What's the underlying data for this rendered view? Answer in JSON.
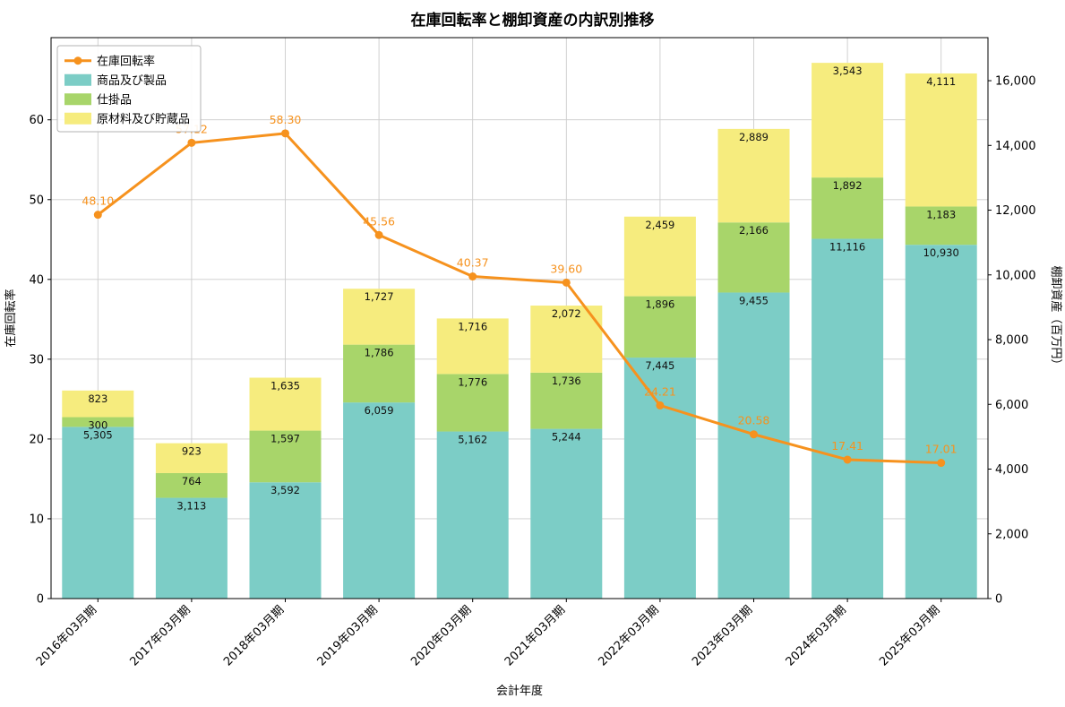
{
  "chart_data": {
    "type": "combo-stacked-bar-line",
    "title": "在庫回転率と棚卸資産の内訳別推移",
    "xlabel": "会計年度",
    "ylabel_left": "在庫回転率",
    "ylabel_right": "棚卸資産（百万円）",
    "categories": [
      "2016年03月期",
      "2017年03月期",
      "2018年03月期",
      "2019年03月期",
      "2020年03月期",
      "2021年03月期",
      "2022年03月期",
      "2023年03月期",
      "2024年03月期",
      "2025年03月期"
    ],
    "bar_series": [
      {
        "name": "商品及び製品",
        "color": "#7ccdc6",
        "values": [
          5305,
          3113,
          3592,
          6059,
          5162,
          5244,
          7445,
          9455,
          11116,
          10930
        ]
      },
      {
        "name": "仕掛品",
        "color": "#a8d56a",
        "values": [
          300,
          764,
          1597,
          1786,
          1776,
          1736,
          1896,
          2166,
          1892,
          1183
        ]
      },
      {
        "name": "原材料及び貯蔵品",
        "color": "#f6ec7e",
        "values": [
          823,
          923,
          1635,
          1727,
          1716,
          2072,
          2459,
          2889,
          3543,
          4111
        ]
      }
    ],
    "line_series": {
      "name": "在庫回転率",
      "color": "#f6921e",
      "values": [
        48.1,
        57.12,
        58.3,
        45.56,
        40.37,
        39.6,
        24.21,
        20.58,
        17.41,
        17.01
      ]
    },
    "left_axis": {
      "ticks": [
        0,
        10,
        20,
        30,
        40,
        50,
        60
      ],
      "max": 70.3
    },
    "right_axis": {
      "ticks": [
        0,
        2000,
        4000,
        6000,
        8000,
        10000,
        12000,
        14000,
        16000
      ],
      "max": 17330
    },
    "grid": true,
    "legend_position": "upper-left",
    "colors": {
      "grid": "#cccccc",
      "spine": "#000000",
      "text": "#000000"
    }
  }
}
